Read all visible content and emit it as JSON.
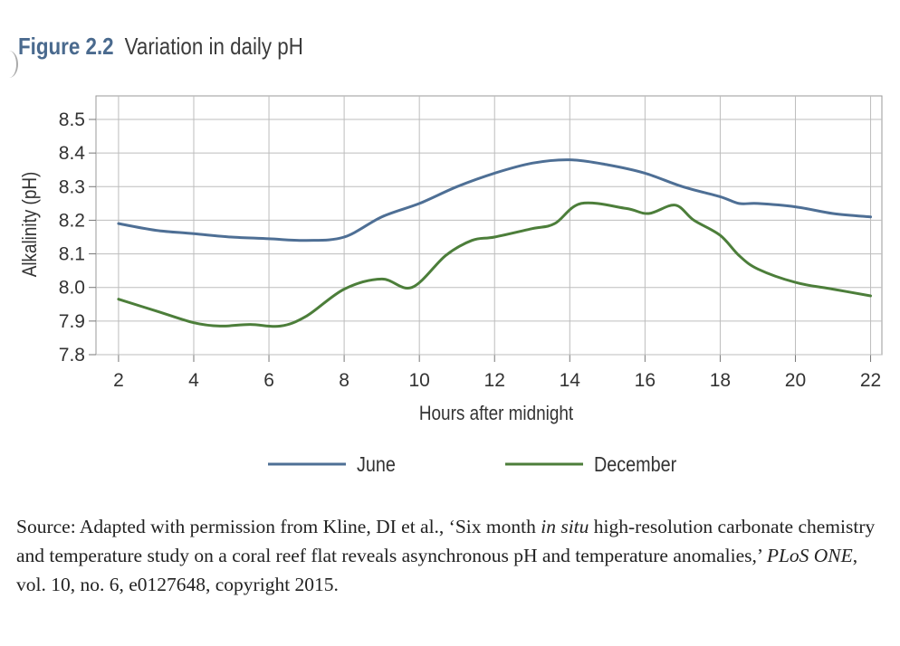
{
  "figure": {
    "number_label": "Figure 2.2",
    "title": "Variation in daily pH"
  },
  "source_note": {
    "part1": "Source: Adapted with permission from Kline, DI et al., ‘Six month ",
    "italic1": "in situ",
    "part2": " high-resolution carbonate chemistry and temperature study on a coral reef flat reveals asynchronous pH and temperature anomalies,’ ",
    "italic2": "PLoS ONE",
    "part3": ", vol. 10, no. 6, e0127648, copyright 2015."
  },
  "chart_data": {
    "type": "line",
    "title": "",
    "xlabel": "Hours after midnight",
    "ylabel": "Alkalinity (pH)",
    "xlim": [
      1.4,
      22.3
    ],
    "ylim": [
      7.8,
      8.57
    ],
    "xticks": [
      2,
      4,
      6,
      8,
      10,
      12,
      14,
      16,
      18,
      20,
      22
    ],
    "yticks": [
      7.8,
      7.9,
      8.0,
      8.1,
      8.2,
      8.3,
      8.4,
      8.5
    ],
    "grid": true,
    "legend_position": "bottom",
    "series": [
      {
        "name": "June",
        "color": "#4e6f95",
        "points": [
          [
            2,
            8.19
          ],
          [
            3,
            8.17
          ],
          [
            4,
            8.16
          ],
          [
            5,
            8.15
          ],
          [
            6,
            8.145
          ],
          [
            7,
            8.14
          ],
          [
            8,
            8.15
          ],
          [
            9,
            8.21
          ],
          [
            10,
            8.25
          ],
          [
            11,
            8.3
          ],
          [
            12,
            8.34
          ],
          [
            13,
            8.37
          ],
          [
            14,
            8.38
          ],
          [
            15,
            8.365
          ],
          [
            16,
            8.34
          ],
          [
            17,
            8.3
          ],
          [
            18,
            8.27
          ],
          [
            18.5,
            8.25
          ],
          [
            19,
            8.25
          ],
          [
            20,
            8.24
          ],
          [
            21,
            8.22
          ],
          [
            22,
            8.21
          ]
        ]
      },
      {
        "name": "December",
        "color": "#4c7e3a",
        "points": [
          [
            2,
            7.965
          ],
          [
            3,
            7.93
          ],
          [
            4,
            7.895
          ],
          [
            4.7,
            7.885
          ],
          [
            5.5,
            7.89
          ],
          [
            6.3,
            7.885
          ],
          [
            7,
            7.915
          ],
          [
            8,
            7.995
          ],
          [
            9,
            8.025
          ],
          [
            9.8,
            8.0
          ],
          [
            10.7,
            8.095
          ],
          [
            11.4,
            8.14
          ],
          [
            12,
            8.15
          ],
          [
            13,
            8.175
          ],
          [
            13.6,
            8.19
          ],
          [
            14.3,
            8.25
          ],
          [
            15.5,
            8.235
          ],
          [
            16.1,
            8.22
          ],
          [
            16.8,
            8.245
          ],
          [
            17.3,
            8.2
          ],
          [
            18,
            8.155
          ],
          [
            18.5,
            8.095
          ],
          [
            19,
            8.055
          ],
          [
            20,
            8.015
          ],
          [
            21,
            7.995
          ],
          [
            22,
            7.975
          ]
        ]
      }
    ]
  }
}
